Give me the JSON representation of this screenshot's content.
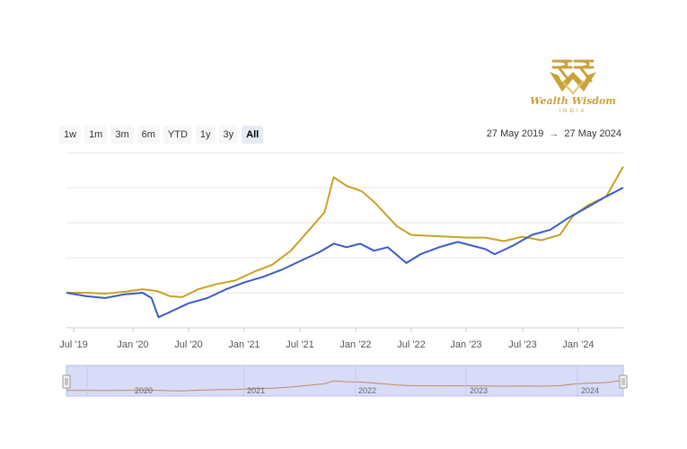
{
  "logo": {
    "title": "Wealth Wisdom",
    "subtitle": "INDIA",
    "color": "#c9a23c"
  },
  "range_selector": {
    "buttons": [
      "1w",
      "1m",
      "3m",
      "6m",
      "YTD",
      "1y",
      "3y",
      "All"
    ],
    "selected": "All"
  },
  "date_range": {
    "from": "27 May 2019",
    "arrow": "→",
    "to": "27 May 2024"
  },
  "chart_data": {
    "type": "line",
    "title": "",
    "xlabel": "",
    "ylabel": "",
    "x_ticks": [
      "Jul '19",
      "Jan '20",
      "Jul '20",
      "Jan '21",
      "Jul '21",
      "Jan '22",
      "Jul '22",
      "Jan '23",
      "Jul '23",
      "Jan '24"
    ],
    "y_ticks": [],
    "grid": true,
    "x_range": [
      "2019-05-27",
      "2024-05-27"
    ],
    "ylim": [
      0,
      100
    ],
    "series": [
      {
        "color": "#c9a227",
        "points": [
          [
            "2019-05-27",
            20
          ],
          [
            "2019-08-01",
            20
          ],
          [
            "2019-10-01",
            19.5
          ],
          [
            "2019-12-01",
            20.5
          ],
          [
            "2020-02-01",
            22
          ],
          [
            "2020-03-20",
            21
          ],
          [
            "2020-05-01",
            18
          ],
          [
            "2020-06-10",
            17.5
          ],
          [
            "2020-08-01",
            22
          ],
          [
            "2020-10-01",
            25
          ],
          [
            "2020-12-01",
            27
          ],
          [
            "2021-02-01",
            32
          ],
          [
            "2021-04-01",
            36
          ],
          [
            "2021-06-01",
            44
          ],
          [
            "2021-08-01",
            56
          ],
          [
            "2021-09-20",
            66
          ],
          [
            "2021-10-20",
            86
          ],
          [
            "2021-12-01",
            81
          ],
          [
            "2022-01-20",
            78
          ],
          [
            "2022-03-01",
            72
          ],
          [
            "2022-05-15",
            58
          ],
          [
            "2022-07-01",
            53
          ],
          [
            "2022-09-01",
            52.5
          ],
          [
            "2022-11-01",
            52
          ],
          [
            "2023-01-01",
            51.5
          ],
          [
            "2023-03-01",
            51.5
          ],
          [
            "2023-05-01",
            49.5
          ],
          [
            "2023-07-01",
            52
          ],
          [
            "2023-09-01",
            50
          ],
          [
            "2023-11-01",
            53
          ],
          [
            "2023-12-15",
            64
          ],
          [
            "2024-02-01",
            70
          ],
          [
            "2024-04-01",
            75
          ],
          [
            "2024-05-27",
            92
          ]
        ]
      },
      {
        "color": "#3b5bc7",
        "points": [
          [
            "2019-05-27",
            20
          ],
          [
            "2019-08-01",
            18
          ],
          [
            "2019-10-01",
            17
          ],
          [
            "2019-12-01",
            19
          ],
          [
            "2020-02-01",
            20
          ],
          [
            "2020-03-01",
            17
          ],
          [
            "2020-03-24",
            6
          ],
          [
            "2020-05-01",
            9
          ],
          [
            "2020-07-01",
            14
          ],
          [
            "2020-09-01",
            17
          ],
          [
            "2020-11-01",
            22
          ],
          [
            "2021-01-01",
            26
          ],
          [
            "2021-03-01",
            29
          ],
          [
            "2021-05-01",
            33
          ],
          [
            "2021-07-01",
            38
          ],
          [
            "2021-09-01",
            43
          ],
          [
            "2021-10-20",
            48
          ],
          [
            "2021-12-01",
            46
          ],
          [
            "2022-01-15",
            48
          ],
          [
            "2022-03-01",
            44
          ],
          [
            "2022-04-15",
            46
          ],
          [
            "2022-06-15",
            37
          ],
          [
            "2022-08-01",
            42
          ],
          [
            "2022-10-01",
            46
          ],
          [
            "2022-12-01",
            49
          ],
          [
            "2023-01-15",
            47
          ],
          [
            "2023-03-01",
            45
          ],
          [
            "2023-04-01",
            42
          ],
          [
            "2023-06-01",
            47
          ],
          [
            "2023-08-01",
            53
          ],
          [
            "2023-10-01",
            56
          ],
          [
            "2023-12-01",
            63
          ],
          [
            "2024-02-01",
            69
          ],
          [
            "2024-04-01",
            75
          ],
          [
            "2024-05-27",
            80
          ]
        ]
      }
    ],
    "navigator": {
      "labels": [
        "2020",
        "2021",
        "2022",
        "2023",
        "2024"
      ],
      "fill": "#d8dcf8",
      "line_color": "#c8855c"
    }
  }
}
